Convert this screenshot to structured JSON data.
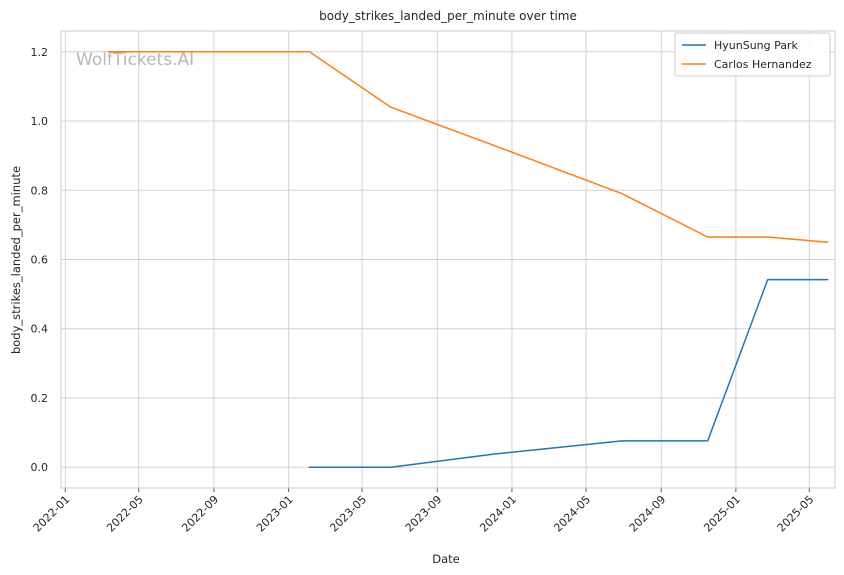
{
  "watermark": "WolfTickets.AI",
  "chart_data": {
    "type": "line",
    "title": "body_strikes_landed_per_minute over time",
    "xlabel": "Date",
    "ylabel": "body_strikes_landed_per_minute",
    "x_ticks": [
      "2022-01",
      "2022-05",
      "2022-09",
      "2023-01",
      "2023-05",
      "2023-09",
      "2024-01",
      "2024-05",
      "2024-09",
      "2025-01",
      "2025-05"
    ],
    "y_ticks": [
      "0.0",
      "0.2",
      "0.4",
      "0.6",
      "0.8",
      "1.0",
      "1.2"
    ],
    "xlim": [
      "2021-12-25",
      "2025-06-12"
    ],
    "ylim": [
      -0.06,
      1.26
    ],
    "grid": true,
    "legend_position": "top-right",
    "series": [
      {
        "name": "HyunSung Park",
        "color": "#1f77b4",
        "points": [
          {
            "x": "2023-02-04",
            "y": 0.0
          },
          {
            "x": "2023-06-17",
            "y": 0.0
          },
          {
            "x": "2023-12-02",
            "y": 0.038
          },
          {
            "x": "2024-06-29",
            "y": 0.076
          },
          {
            "x": "2024-11-16",
            "y": 0.076
          },
          {
            "x": "2025-02-22",
            "y": 0.542
          },
          {
            "x": "2025-05-31",
            "y": 0.542
          }
        ]
      },
      {
        "name": "Carlos Hernandez",
        "color": "#ff7f0e",
        "points": [
          {
            "x": "2022-03-12",
            "y": 1.2
          },
          {
            "x": "2023-02-04",
            "y": 1.2
          },
          {
            "x": "2023-06-17",
            "y": 1.04
          },
          {
            "x": "2023-12-02",
            "y": 0.93
          },
          {
            "x": "2024-06-29",
            "y": 0.79
          },
          {
            "x": "2024-11-16",
            "y": 0.665
          },
          {
            "x": "2025-02-22",
            "y": 0.665
          },
          {
            "x": "2025-05-31",
            "y": 0.65
          }
        ]
      }
    ]
  }
}
